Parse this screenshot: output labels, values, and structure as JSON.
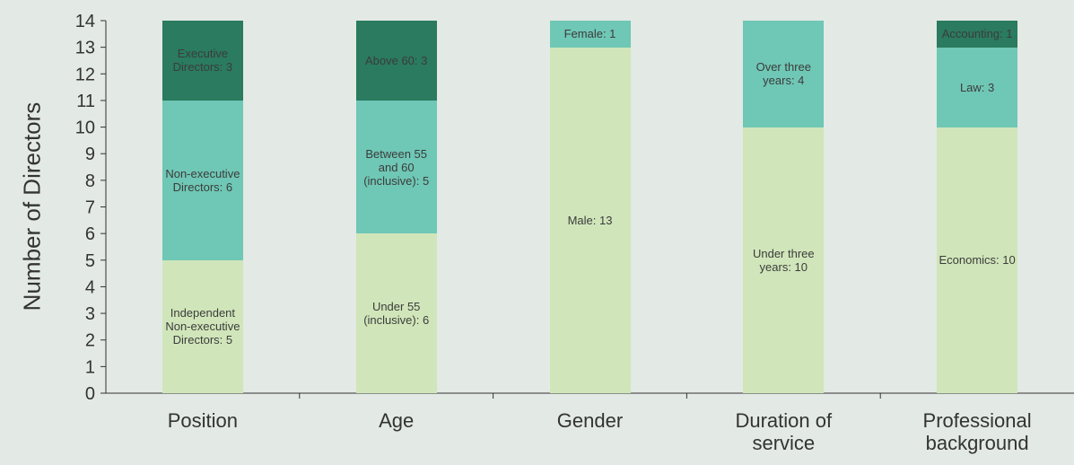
{
  "chart_data": {
    "type": "stacked_bar",
    "y_label": "Number of Directors",
    "ylim": [
      0,
      14
    ],
    "yticks": [
      0,
      1,
      2,
      3,
      4,
      5,
      6,
      7,
      8,
      9,
      10,
      11,
      12,
      13,
      14
    ],
    "colors": [
      "#d0e6ba",
      "#6fc7b5",
      "#2a7b5f"
    ],
    "stacks": [
      {
        "category": "Position",
        "segments": [
          {
            "label": "Independent Non-executive Directors: 5",
            "value": 5
          },
          {
            "label": "Non-executive Directors: 6",
            "value": 6
          },
          {
            "label": "Executive Directors: 3",
            "value": 3
          }
        ]
      },
      {
        "category": "Age",
        "segments": [
          {
            "label": "Under 55 (inclusive): 6",
            "value": 6
          },
          {
            "label": "Between 55 and 60 (inclusive): 5",
            "value": 5
          },
          {
            "label": "Above 60: 3",
            "value": 3
          }
        ]
      },
      {
        "category": "Gender",
        "segments": [
          {
            "label": "Male: 13",
            "value": 13
          },
          {
            "label": "Female: 1",
            "value": 1
          }
        ]
      },
      {
        "category": "Duration of service",
        "segments": [
          {
            "label": "Under three years: 10",
            "value": 10
          },
          {
            "label": "Over three years: 4",
            "value": 4
          }
        ]
      },
      {
        "category": "Professional background",
        "segments": [
          {
            "label": "Economics: 10",
            "value": 10
          },
          {
            "label": "Law: 3",
            "value": 3
          },
          {
            "label": "Accounting: 1",
            "value": 1
          }
        ]
      }
    ]
  }
}
